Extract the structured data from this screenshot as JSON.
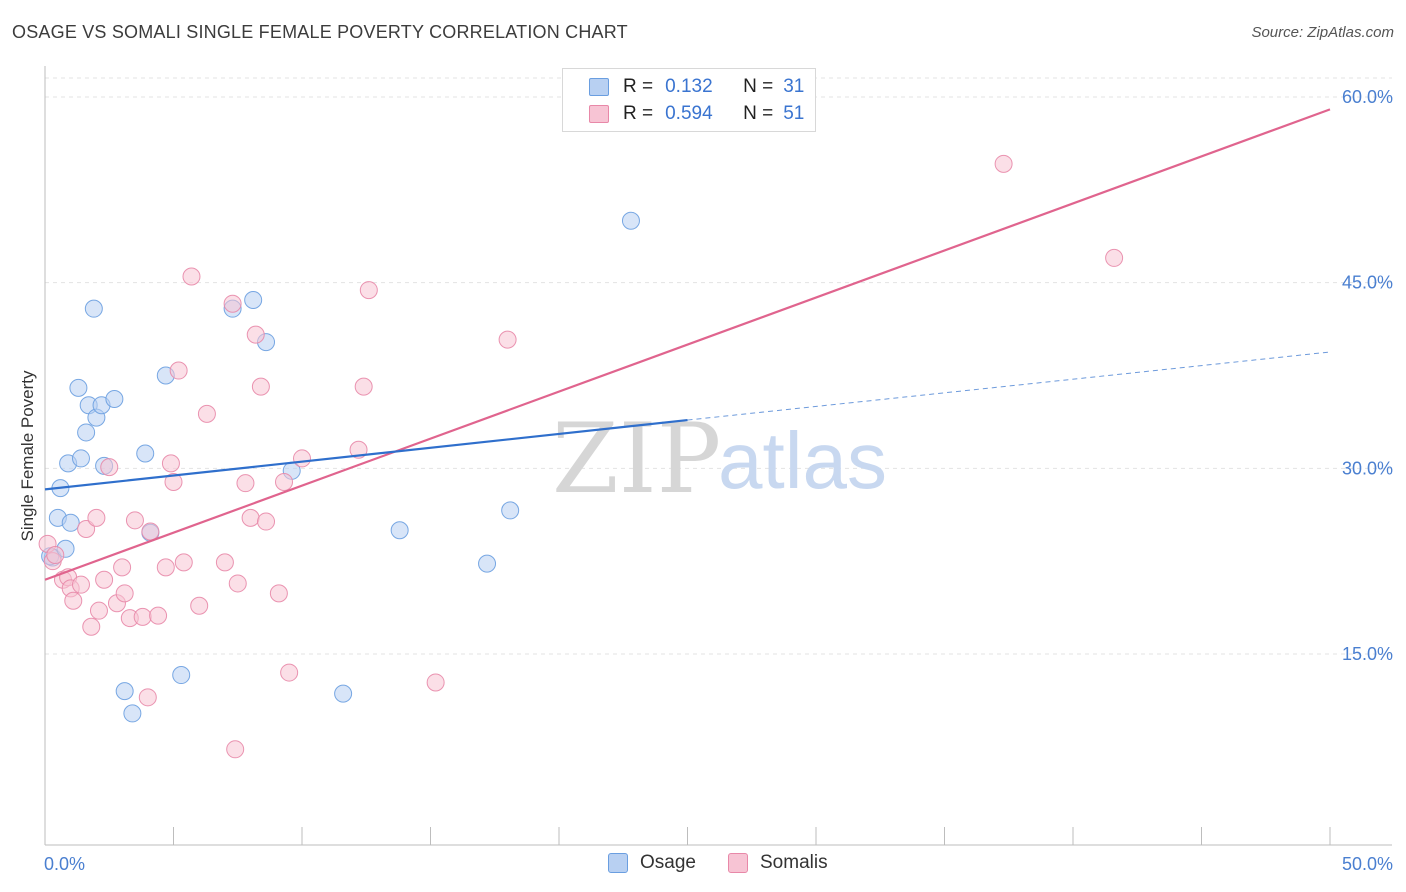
{
  "header": {
    "title": "OSAGE VS SOMALI SINGLE FEMALE POVERTY CORRELATION CHART",
    "source": "Source: ZipAtlas.com"
  },
  "legend": {
    "osage": {
      "r_label": "R =",
      "r_value": "0.132",
      "n_label": "N =",
      "n_value": "31"
    },
    "somalis": {
      "r_label": "R =",
      "r_value": "0.594",
      "n_label": "N =",
      "n_value": "51"
    }
  },
  "bottom_legend": {
    "osage": "Osage",
    "somalis": "Somalis"
  },
  "watermark": {
    "zip": "ZIP",
    "atlas": "atlas"
  },
  "colors": {
    "osage_fill": "#b8d0f2",
    "osage_stroke": "#6a9ee0",
    "osage_line": "#2f6fcc",
    "somalis_fill": "#f7c4d4",
    "somalis_stroke": "#e888a8",
    "somalis_line": "#e0648e",
    "grid": "#e3e3e3",
    "tick": "#4a7fd0"
  },
  "chart_data": {
    "type": "scatter",
    "title": "OSAGE VS SOMALI SINGLE FEMALE POVERTY CORRELATION CHART",
    "xlabel": "",
    "ylabel": "Single Female Poverty",
    "xlim": [
      0,
      50
    ],
    "ylim": [
      0,
      61
    ],
    "x_tick_labels": [
      "0.0%",
      "50.0%"
    ],
    "y_ticks": [
      15,
      30,
      45,
      60
    ],
    "y_tick_labels": [
      "15.0%",
      "30.0%",
      "45.0%",
      "60.0%"
    ],
    "series": [
      {
        "name": "Osage",
        "points": [
          [
            0.3,
            22.8
          ],
          [
            0.5,
            26.0
          ],
          [
            0.6,
            28.4
          ],
          [
            0.8,
            23.5
          ],
          [
            0.9,
            30.4
          ],
          [
            1.0,
            25.6
          ],
          [
            1.3,
            36.5
          ],
          [
            1.4,
            30.8
          ],
          [
            1.6,
            32.9
          ],
          [
            1.7,
            35.1
          ],
          [
            1.9,
            42.9
          ],
          [
            2.0,
            34.1
          ],
          [
            2.2,
            35.1
          ],
          [
            2.3,
            30.2
          ],
          [
            2.7,
            35.6
          ],
          [
            3.1,
            12.0
          ],
          [
            3.4,
            10.2
          ],
          [
            3.9,
            31.2
          ],
          [
            4.1,
            24.8
          ],
          [
            4.7,
            37.5
          ],
          [
            5.3,
            13.3
          ],
          [
            7.3,
            42.9
          ],
          [
            8.1,
            43.6
          ],
          [
            8.6,
            40.2
          ],
          [
            9.6,
            29.8
          ],
          [
            11.6,
            11.8
          ],
          [
            13.8,
            25.0
          ],
          [
            17.2,
            22.3
          ],
          [
            18.1,
            26.6
          ],
          [
            22.8,
            50.0
          ],
          [
            0.2,
            22.9
          ]
        ],
        "trend": {
          "x": [
            0,
            25
          ],
          "y": [
            28.3,
            33.9
          ]
        },
        "trend_extension": {
          "x": [
            25,
            50
          ],
          "y": [
            33.9,
            39.4
          ]
        }
      },
      {
        "name": "Somalis",
        "points": [
          [
            0.1,
            23.9
          ],
          [
            0.3,
            22.5
          ],
          [
            0.4,
            23.0
          ],
          [
            0.7,
            21.0
          ],
          [
            0.9,
            21.2
          ],
          [
            1.0,
            20.3
          ],
          [
            1.1,
            19.3
          ],
          [
            1.4,
            20.6
          ],
          [
            1.6,
            25.1
          ],
          [
            1.8,
            17.2
          ],
          [
            2.0,
            26.0
          ],
          [
            2.1,
            18.5
          ],
          [
            2.3,
            21.0
          ],
          [
            2.5,
            30.1
          ],
          [
            2.8,
            19.1
          ],
          [
            3.0,
            22.0
          ],
          [
            3.1,
            19.9
          ],
          [
            3.3,
            17.9
          ],
          [
            3.5,
            25.8
          ],
          [
            3.8,
            18.0
          ],
          [
            4.1,
            24.9
          ],
          [
            4.4,
            18.1
          ],
          [
            4.7,
            22.0
          ],
          [
            4.9,
            30.4
          ],
          [
            5.0,
            28.9
          ],
          [
            5.2,
            37.9
          ],
          [
            5.4,
            22.4
          ],
          [
            5.7,
            45.5
          ],
          [
            6.0,
            18.9
          ],
          [
            6.3,
            34.4
          ],
          [
            7.0,
            22.4
          ],
          [
            7.3,
            43.3
          ],
          [
            7.5,
            20.7
          ],
          [
            7.8,
            28.8
          ],
          [
            8.0,
            26.0
          ],
          [
            8.2,
            40.8
          ],
          [
            8.4,
            36.6
          ],
          [
            8.6,
            25.7
          ],
          [
            9.1,
            19.9
          ],
          [
            9.3,
            28.9
          ],
          [
            9.5,
            13.5
          ],
          [
            10.0,
            30.8
          ],
          [
            12.2,
            31.5
          ],
          [
            12.4,
            36.6
          ],
          [
            12.6,
            44.4
          ],
          [
            15.2,
            12.7
          ],
          [
            18.0,
            40.4
          ],
          [
            37.3,
            54.6
          ],
          [
            41.6,
            47.0
          ],
          [
            4.0,
            11.5
          ],
          [
            7.4,
            7.3
          ]
        ],
        "trend": {
          "x": [
            0,
            50
          ],
          "y": [
            21.0,
            59.0
          ]
        }
      }
    ]
  }
}
